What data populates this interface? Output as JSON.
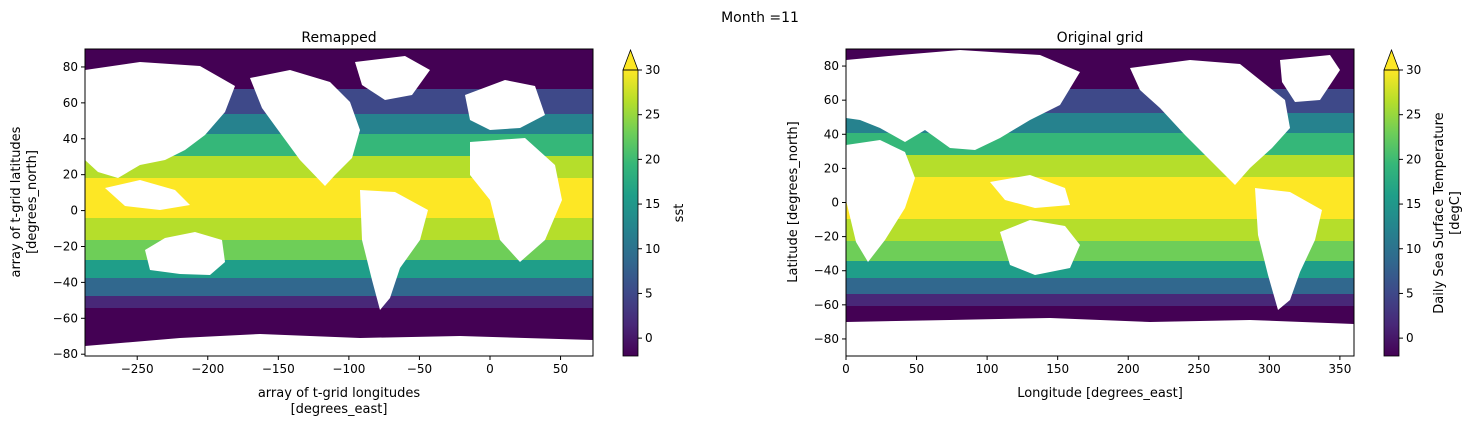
{
  "figure": {
    "suptitle": "Month =11"
  },
  "colors": {
    "viridis": [
      "#440154",
      "#482878",
      "#3e4989",
      "#31688e",
      "#26828e",
      "#1f9e89",
      "#35b779",
      "#6ece58",
      "#b5de2b",
      "#fde725"
    ]
  },
  "chart_data": [
    {
      "type": "heatmap",
      "title": "Remapped",
      "xlabel": [
        "array of t-grid longitudes",
        "[degrees_east]"
      ],
      "ylabel": [
        "array of t-grid latitudes",
        "[degrees_north]"
      ],
      "xlim": [
        -287,
        73
      ],
      "ylim": [
        -81,
        90
      ],
      "xticks": [
        -250,
        -200,
        -150,
        -100,
        -50,
        0,
        50
      ],
      "yticks": [
        -80,
        -60,
        -40,
        -20,
        0,
        20,
        40,
        60,
        80
      ],
      "colorbar": {
        "label": "sst",
        "range": [
          -2,
          30
        ],
        "ticks": [
          0,
          5,
          10,
          15,
          20,
          25,
          30
        ],
        "extend": "max",
        "cmap": "viridis"
      },
      "longitude_convention": "-280..80"
    },
    {
      "type": "heatmap",
      "title": "Original grid",
      "xlabel": [
        "Longitude [degrees_east]"
      ],
      "ylabel": [
        "Latitude [degrees_north]"
      ],
      "xlim": [
        0,
        360
      ],
      "ylim": [
        -90,
        90
      ],
      "xticks": [
        0,
        50,
        100,
        150,
        200,
        250,
        300,
        350
      ],
      "yticks": [
        -80,
        -60,
        -40,
        -20,
        0,
        20,
        40,
        60,
        80
      ],
      "colorbar": {
        "label": [
          "Daily Sea Surface Temperature",
          "[degC]"
        ],
        "range": [
          -2,
          30
        ],
        "ticks": [
          0,
          5,
          10,
          15,
          20,
          25,
          30
        ],
        "extend": "max",
        "cmap": "viridis"
      },
      "longitude_convention": "0..360"
    }
  ]
}
